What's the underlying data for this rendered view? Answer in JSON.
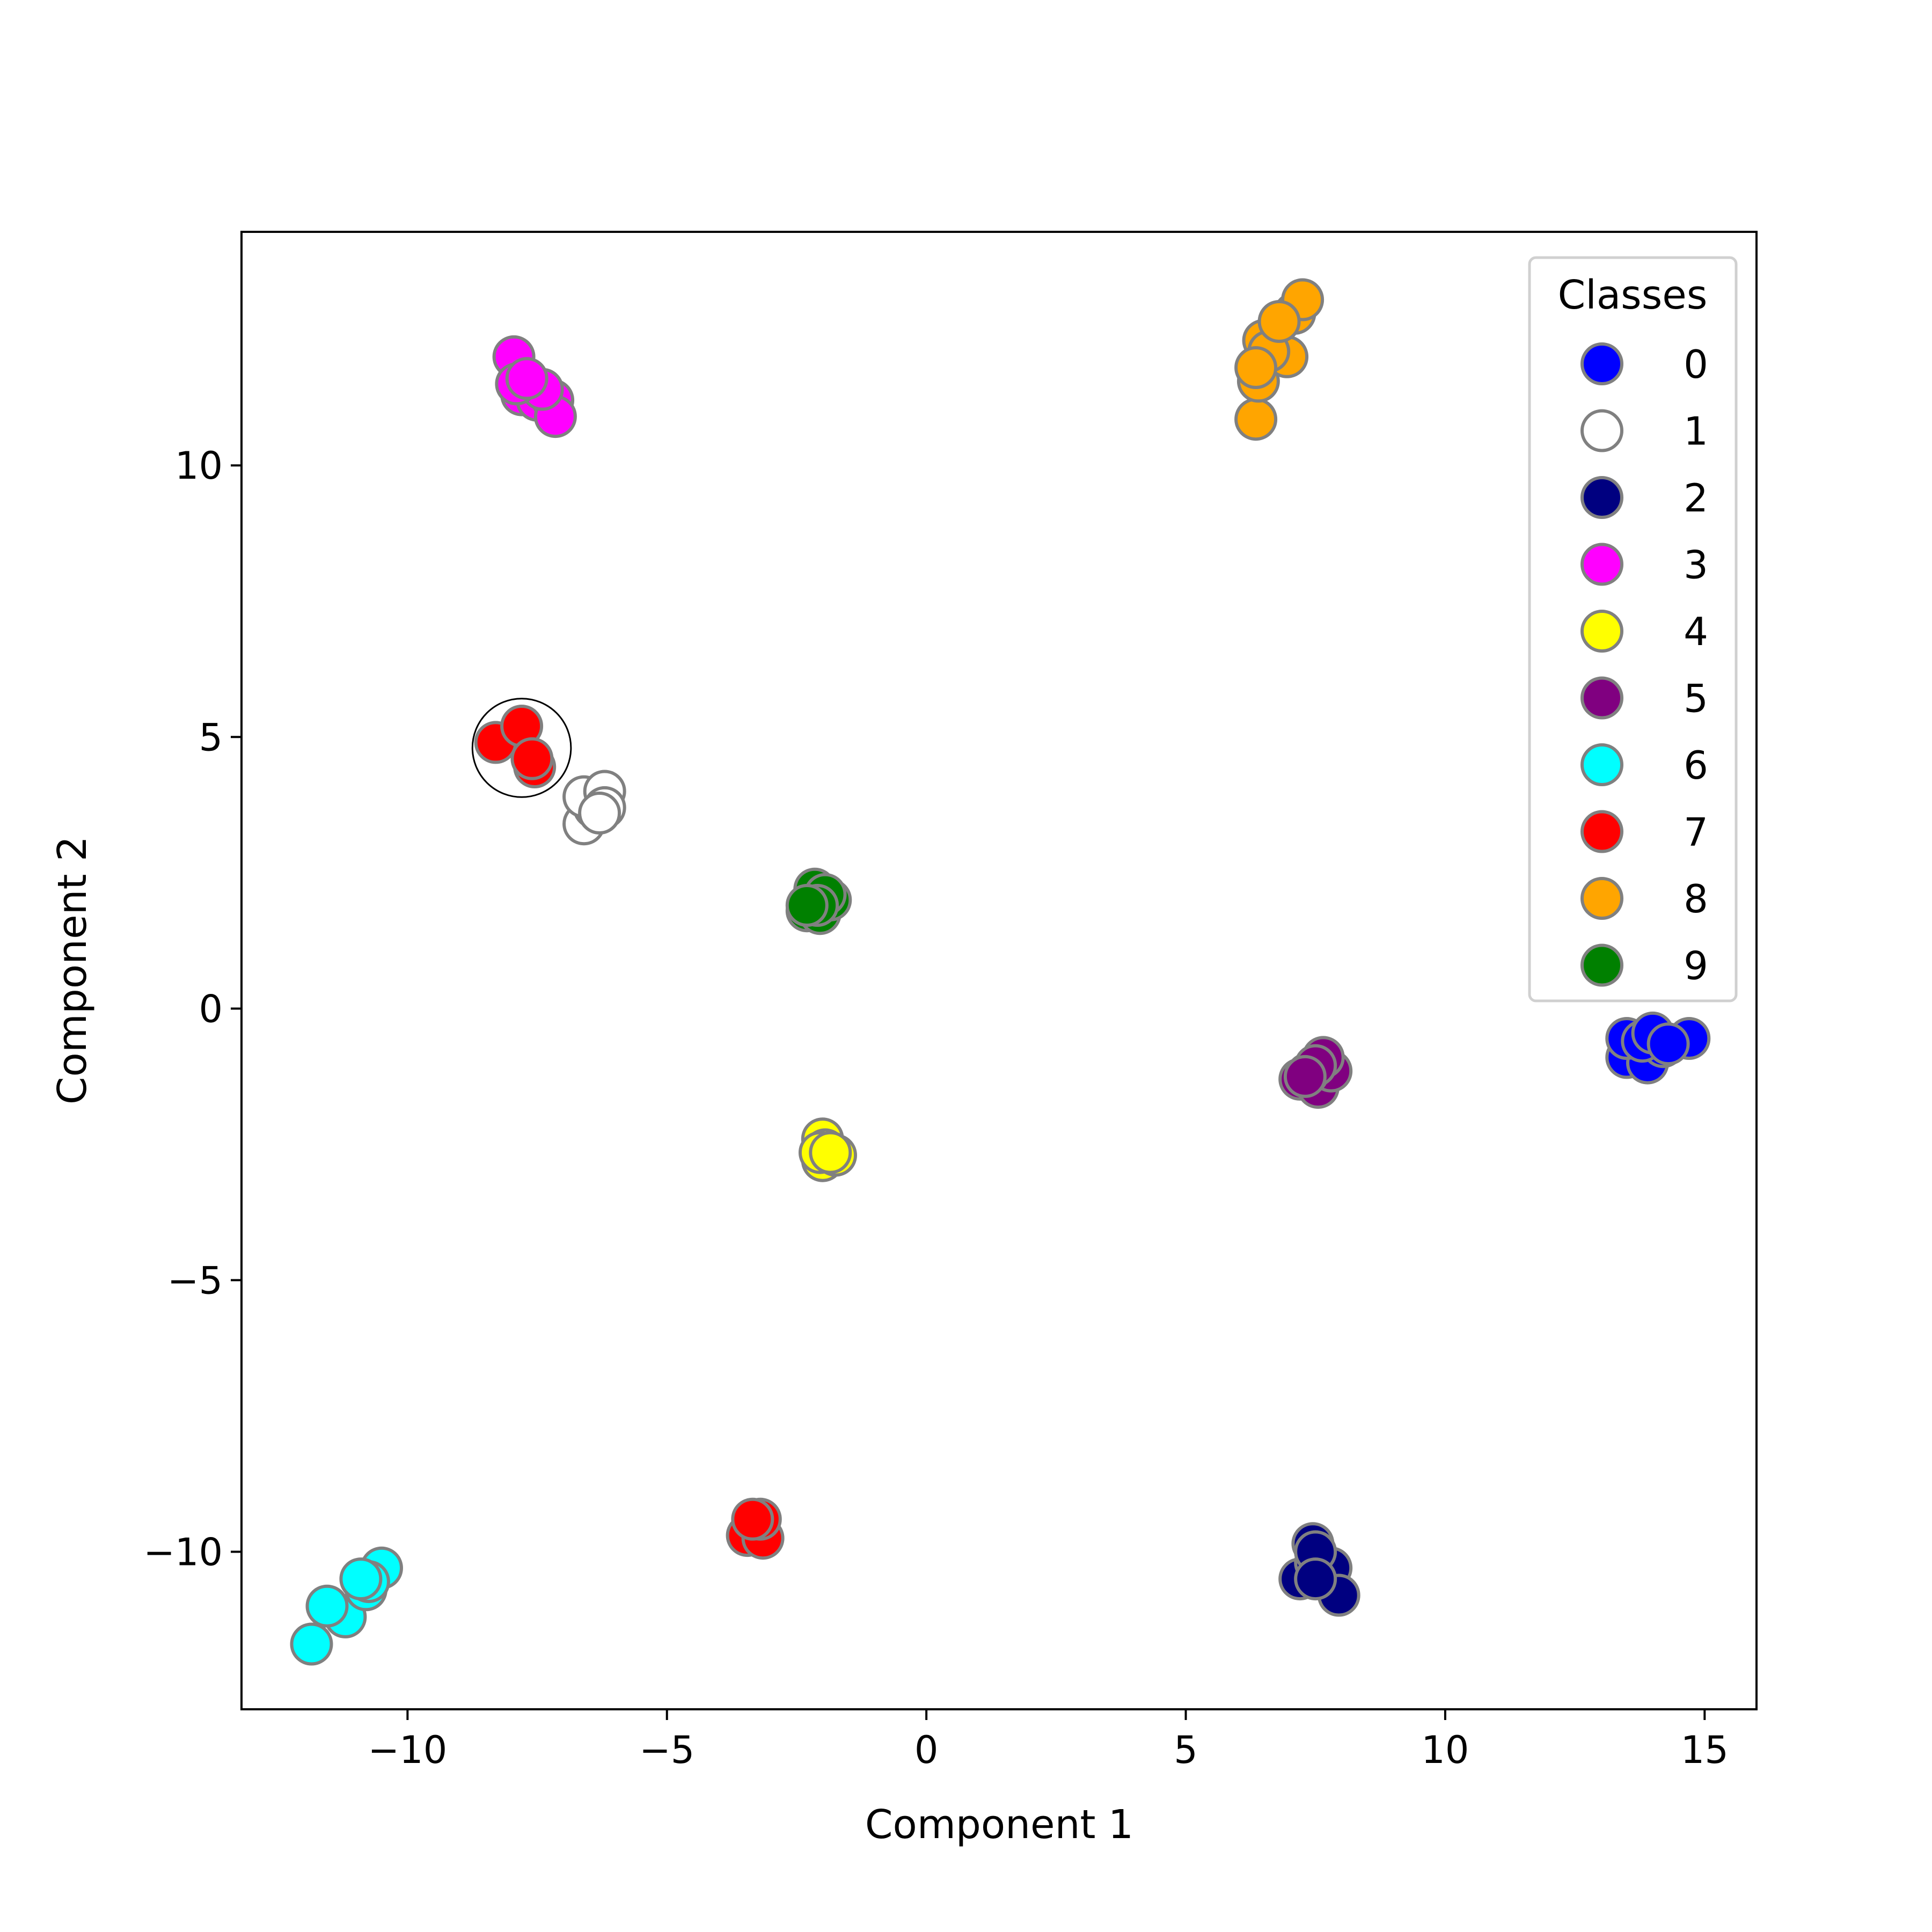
{
  "chart_data": {
    "type": "scatter",
    "xlabel": "Component 1",
    "ylabel": "Component 2",
    "xlim": [
      -13.2,
      16.0
    ],
    "ylim": [
      -12.9,
      14.3
    ],
    "xticks": [
      {
        "value": -10,
        "label": "−10"
      },
      {
        "value": -5,
        "label": "−5"
      },
      {
        "value": 0,
        "label": "0"
      },
      {
        "value": 5,
        "label": "5"
      },
      {
        "value": 10,
        "label": "10"
      },
      {
        "value": 15,
        "label": "15"
      }
    ],
    "yticks": [
      {
        "value": -10,
        "label": "−10"
      },
      {
        "value": -5,
        "label": "−5"
      },
      {
        "value": 0,
        "label": "0"
      },
      {
        "value": 5,
        "label": "5"
      },
      {
        "value": 10,
        "label": "10"
      }
    ],
    "grid": false,
    "legend": {
      "title": "Classes",
      "placement": "top-right"
    },
    "marker_edge_color": "#808080",
    "highlight": {
      "x": -7.8,
      "y": 4.8,
      "radius_x": 0.95
    },
    "series": [
      {
        "name": "0",
        "color": "#0000ff",
        "points": [
          [
            13.5,
            -0.9
          ],
          [
            13.9,
            -1.0
          ],
          [
            14.2,
            -0.7
          ],
          [
            14.7,
            -0.55
          ],
          [
            13.5,
            -0.55
          ],
          [
            13.8,
            -0.6
          ],
          [
            14.0,
            -0.45
          ],
          [
            14.3,
            -0.65
          ]
        ]
      },
      {
        "name": "1",
        "color": "#ffffff",
        "points": [
          [
            -6.6,
            3.4
          ],
          [
            -6.4,
            3.7
          ],
          [
            -6.6,
            3.9
          ],
          [
            -6.2,
            4.0
          ],
          [
            -6.2,
            3.7
          ],
          [
            -6.3,
            3.6
          ]
        ]
      },
      {
        "name": "2",
        "color": "#000080",
        "points": [
          [
            7.2,
            -10.5
          ],
          [
            7.5,
            -10.2
          ],
          [
            7.8,
            -10.3
          ],
          [
            7.95,
            -10.8
          ],
          [
            7.45,
            -9.85
          ],
          [
            7.5,
            -10.0
          ],
          [
            7.5,
            -10.5
          ]
        ]
      },
      {
        "name": "3",
        "color": "#ff00ff",
        "points": [
          [
            -7.95,
            12.0
          ],
          [
            -7.8,
            11.3
          ],
          [
            -7.5,
            11.2
          ],
          [
            -7.2,
            11.2
          ],
          [
            -7.15,
            10.9
          ],
          [
            -7.4,
            11.4
          ],
          [
            -7.9,
            11.5
          ],
          [
            -7.7,
            11.6
          ]
        ]
      },
      {
        "name": "4",
        "color": "#ffff00",
        "points": [
          [
            -2.0,
            -2.4
          ],
          [
            -1.95,
            -2.6
          ],
          [
            -2.0,
            -2.8
          ],
          [
            -1.75,
            -2.7
          ],
          [
            -2.05,
            -2.65
          ],
          [
            -1.85,
            -2.65
          ]
        ]
      },
      {
        "name": "5",
        "color": "#800080",
        "points": [
          [
            7.2,
            -1.3
          ],
          [
            7.55,
            -1.45
          ],
          [
            7.8,
            -1.15
          ],
          [
            7.65,
            -0.9
          ],
          [
            7.35,
            -1.2
          ],
          [
            7.5,
            -1.05
          ],
          [
            7.3,
            -1.25
          ]
        ]
      },
      {
        "name": "6",
        "color": "#00ffff",
        "points": [
          [
            -11.85,
            -11.7
          ],
          [
            -11.2,
            -11.2
          ],
          [
            -10.8,
            -10.7
          ],
          [
            -10.5,
            -10.3
          ],
          [
            -11.55,
            -11.0
          ],
          [
            -10.75,
            -10.55
          ],
          [
            -10.9,
            -10.5
          ]
        ]
      },
      {
        "name": "7",
        "color": "#ff0000",
        "points": [
          [
            -8.3,
            4.9
          ],
          [
            -7.8,
            5.2
          ],
          [
            -7.55,
            4.45
          ],
          [
            -7.6,
            4.6
          ],
          [
            -3.45,
            -9.7
          ],
          [
            -3.15,
            -9.75
          ],
          [
            -3.2,
            -9.4
          ],
          [
            -3.35,
            -9.4
          ]
        ]
      },
      {
        "name": "8",
        "color": "#ffa500",
        "points": [
          [
            6.35,
            10.85
          ],
          [
            6.4,
            11.55
          ],
          [
            6.5,
            12.3
          ],
          [
            6.95,
            12.0
          ],
          [
            7.1,
            12.8
          ],
          [
            7.25,
            13.05
          ],
          [
            6.6,
            12.1
          ],
          [
            6.8,
            12.65
          ],
          [
            6.35,
            11.8
          ]
        ]
      },
      {
        "name": "9",
        "color": "#008000",
        "points": [
          [
            -2.3,
            1.8
          ],
          [
            -2.05,
            1.75
          ],
          [
            -1.85,
            2.0
          ],
          [
            -2.15,
            2.2
          ],
          [
            -1.95,
            2.1
          ],
          [
            -2.1,
            1.9
          ],
          [
            -2.3,
            1.9
          ]
        ]
      }
    ]
  }
}
